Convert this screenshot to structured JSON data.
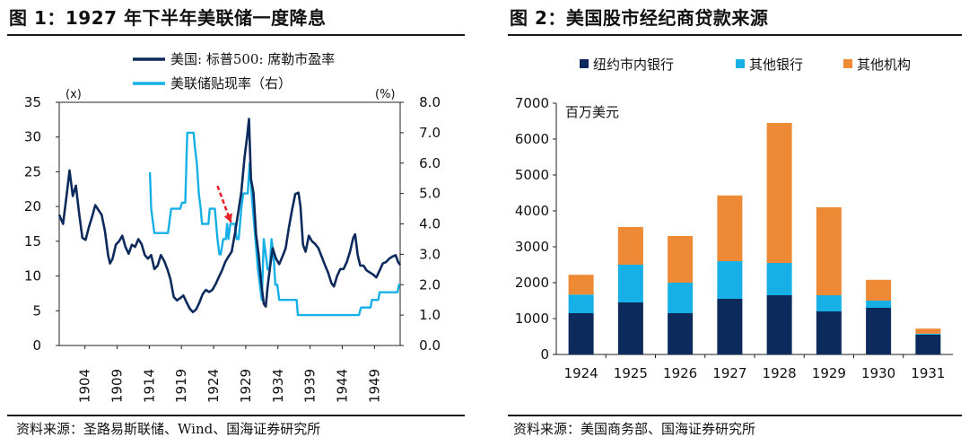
{
  "figure1": {
    "title": "图 1：1927 年下半年美联储一度降息",
    "source": "资料来源：圣路易斯联储、Wind、国海证券研究所"
  },
  "figure2": {
    "title": "图 2：美国股市经纪商贷款来源",
    "source": "资料来源：美国商务部、国海证券研究所"
  },
  "colors": {
    "dark_navy": "#0d2a5c",
    "light_blue": "#16b0e6",
    "orange": "#ee8a35",
    "red_arrow": "#e8202a"
  },
  "chart_data": [
    {
      "type": "line",
      "title": "",
      "xlabel": "",
      "ylabel_left_unit": "(x)",
      "ylabel_right_unit": "(%)",
      "x_ticks": [
        "1904",
        "1909",
        "1914",
        "1919",
        "1924",
        "1929",
        "1934",
        "1939",
        "1944",
        "1949"
      ],
      "y_left_ticks": [
        "0",
        "5",
        "10",
        "15",
        "20",
        "25",
        "30",
        "35"
      ],
      "y_right_ticks": [
        "0.0",
        "1.0",
        "2.0",
        "3.0",
        "4.0",
        "5.0",
        "6.0",
        "7.0",
        "8.0"
      ],
      "y_left_range": [
        0,
        35
      ],
      "y_right_range": [
        0,
        8
      ],
      "x_range": [
        1900,
        1953
      ],
      "legend_placement": "top",
      "annotation": "red dashed arrow pointing at the 1927 discount rate cut",
      "series": [
        {
          "name": "美国: 标普500: 席勒市盈率",
          "axis": "left",
          "color": "#0d2a5c",
          "points": [
            [
              1900,
              18.8
            ],
            [
              1900.6,
              17.5
            ],
            [
              1901.2,
              22
            ],
            [
              1901.6,
              25.2
            ],
            [
              1902.1,
              21.5
            ],
            [
              1902.6,
              23
            ],
            [
              1903.1,
              19
            ],
            [
              1903.6,
              15.5
            ],
            [
              1904.1,
              15.2
            ],
            [
              1904.6,
              17
            ],
            [
              1905.1,
              18.5
            ],
            [
              1905.6,
              20.2
            ],
            [
              1906.1,
              19.5
            ],
            [
              1906.6,
              18.8
            ],
            [
              1907.1,
              16.5
            ],
            [
              1907.6,
              13
            ],
            [
              1907.9,
              11.8
            ],
            [
              1908.3,
              12.5
            ],
            [
              1908.8,
              14.5
            ],
            [
              1909.3,
              15
            ],
            [
              1909.8,
              15.8
            ],
            [
              1910.3,
              14.2
            ],
            [
              1910.8,
              13.2
            ],
            [
              1911.3,
              14.5
            ],
            [
              1911.8,
              14.2
            ],
            [
              1912.3,
              15.3
            ],
            [
              1912.8,
              14.6
            ],
            [
              1913.3,
              13
            ],
            [
              1913.8,
              12.5
            ],
            [
              1914.3,
              13
            ],
            [
              1914.8,
              11
            ],
            [
              1915.3,
              11.5
            ],
            [
              1915.8,
              13
            ],
            [
              1916.3,
              12.2
            ],
            [
              1916.8,
              11
            ],
            [
              1917.3,
              9.5
            ],
            [
              1917.8,
              7
            ],
            [
              1918.3,
              6.5
            ],
            [
              1918.8,
              6.8
            ],
            [
              1919.3,
              7.2
            ],
            [
              1919.8,
              6.2
            ],
            [
              1920.3,
              5.3
            ],
            [
              1920.8,
              4.8
            ],
            [
              1921.3,
              5.2
            ],
            [
              1921.8,
              6.2
            ],
            [
              1922.3,
              7.4
            ],
            [
              1922.8,
              8
            ],
            [
              1923.3,
              7.7
            ],
            [
              1923.8,
              8
            ],
            [
              1924.3,
              8.8
            ],
            [
              1924.8,
              9.8
            ],
            [
              1925.3,
              10.8
            ],
            [
              1925.8,
              12
            ],
            [
              1926.3,
              12.8
            ],
            [
              1926.8,
              13.5
            ],
            [
              1927.3,
              16
            ],
            [
              1927.8,
              19
            ],
            [
              1928.3,
              22
            ],
            [
              1928.8,
              27
            ],
            [
              1929.2,
              30
            ],
            [
              1929.5,
              32.6
            ],
            [
              1929.8,
              24
            ],
            [
              1930.2,
              22
            ],
            [
              1930.6,
              16
            ],
            [
              1931.0,
              13
            ],
            [
              1931.4,
              9
            ],
            [
              1931.8,
              6
            ],
            [
              1932.1,
              5.6
            ],
            [
              1932.4,
              8.5
            ],
            [
              1932.8,
              11.5
            ],
            [
              1933.2,
              14
            ],
            [
              1933.7,
              12.5
            ],
            [
              1934.2,
              11.7
            ],
            [
              1934.7,
              12.8
            ],
            [
              1935.2,
              14
            ],
            [
              1935.7,
              17
            ],
            [
              1936.2,
              19.5
            ],
            [
              1936.7,
              21.8
            ],
            [
              1937.2,
              22
            ],
            [
              1937.5,
              20
            ],
            [
              1937.9,
              14.5
            ],
            [
              1938.3,
              13.5
            ],
            [
              1938.8,
              15.8
            ],
            [
              1939.3,
              15
            ],
            [
              1939.8,
              14.6
            ],
            [
              1940.3,
              14
            ],
            [
              1940.8,
              12.8
            ],
            [
              1941.3,
              11.6
            ],
            [
              1941.8,
              10.5
            ],
            [
              1942.3,
              9
            ],
            [
              1942.7,
              8.5
            ],
            [
              1943.2,
              10
            ],
            [
              1943.7,
              11
            ],
            [
              1944.2,
              11
            ],
            [
              1944.7,
              12
            ],
            [
              1945.2,
              13.5
            ],
            [
              1945.7,
              15.5
            ],
            [
              1946.0,
              16
            ],
            [
              1946.4,
              13
            ],
            [
              1946.8,
              11.5
            ],
            [
              1947.3,
              11.5
            ],
            [
              1947.8,
              10.8
            ],
            [
              1948.3,
              10.5
            ],
            [
              1948.8,
              10.2
            ],
            [
              1949.3,
              9.8
            ],
            [
              1949.8,
              10.8
            ],
            [
              1950.3,
              11.8
            ],
            [
              1950.8,
              12
            ],
            [
              1951.3,
              12.5
            ],
            [
              1951.8,
              12.8
            ],
            [
              1952.3,
              13
            ],
            [
              1952.7,
              12
            ],
            [
              1953,
              11.6
            ]
          ]
        },
        {
          "name": "美联储贴现率（右）",
          "axis": "right",
          "color": "#16b0e6",
          "points": [
            [
              1914.1,
              5.7
            ],
            [
              1914.3,
              4.5
            ],
            [
              1914.6,
              4.0
            ],
            [
              1914.8,
              3.7
            ],
            [
              1916.9,
              3.7
            ],
            [
              1917.1,
              4.0
            ],
            [
              1917.4,
              4.5
            ],
            [
              1918.8,
              4.5
            ],
            [
              1919.1,
              4.7
            ],
            [
              1919.6,
              4.7
            ],
            [
              1919.9,
              7.0
            ],
            [
              1920.9,
              7.0
            ],
            [
              1921.1,
              6.5
            ],
            [
              1921.4,
              6.0
            ],
            [
              1921.7,
              5.0
            ],
            [
              1922.0,
              4.5
            ],
            [
              1922.2,
              4.0
            ],
            [
              1923.2,
              4.0
            ],
            [
              1923.4,
              4.5
            ],
            [
              1924.2,
              4.5
            ],
            [
              1924.4,
              4.0
            ],
            [
              1924.6,
              3.5
            ],
            [
              1924.9,
              3.0
            ],
            [
              1925.1,
              3.0
            ],
            [
              1925.5,
              3.5
            ],
            [
              1925.9,
              3.5
            ],
            [
              1926.1,
              4.0
            ],
            [
              1926.3,
              3.5
            ],
            [
              1926.6,
              4.0
            ],
            [
              1927.3,
              4.0
            ],
            [
              1927.6,
              3.5
            ],
            [
              1927.9,
              3.5
            ],
            [
              1928.1,
              4.0
            ],
            [
              1928.3,
              4.5
            ],
            [
              1928.6,
              5.0
            ],
            [
              1929.3,
              5.0
            ],
            [
              1929.6,
              6.0
            ],
            [
              1929.9,
              5.0
            ],
            [
              1930.1,
              4.5
            ],
            [
              1930.3,
              4.0
            ],
            [
              1930.5,
              3.5
            ],
            [
              1930.7,
              3.0
            ],
            [
              1930.9,
              2.5
            ],
            [
              1931.2,
              2.0
            ],
            [
              1931.5,
              1.5
            ],
            [
              1931.8,
              3.5
            ],
            [
              1932.1,
              3.0
            ],
            [
              1932.4,
              2.5
            ],
            [
              1932.7,
              2.5
            ],
            [
              1933.0,
              3.5
            ],
            [
              1933.3,
              3.0
            ],
            [
              1933.6,
              2.0
            ],
            [
              1933.9,
              2.0
            ],
            [
              1934.2,
              1.5
            ],
            [
              1936.9,
              1.5
            ],
            [
              1937.1,
              1.0
            ],
            [
              1946.6,
              1.0
            ],
            [
              1946.9,
              1.25
            ],
            [
              1948.4,
              1.25
            ],
            [
              1948.6,
              1.5
            ],
            [
              1949.6,
              1.5
            ],
            [
              1949.8,
              1.75
            ],
            [
              1952.6,
              1.75
            ],
            [
              1952.8,
              2.0
            ],
            [
              1953,
              2.0
            ]
          ]
        }
      ]
    },
    {
      "type": "bar",
      "stacked": true,
      "title": "",
      "xlabel": "",
      "ylabel": "百万美元",
      "ylim": [
        0,
        7000
      ],
      "y_ticks": [
        "0",
        "1000",
        "2000",
        "3000",
        "4000",
        "5000",
        "6000",
        "7000"
      ],
      "legend_placement": "top",
      "categories": [
        "1924",
        "1925",
        "1926",
        "1927",
        "1928",
        "1929",
        "1930",
        "1931"
      ],
      "series": [
        {
          "name": "纽约市内银行",
          "color": "#0d2a5c",
          "values": [
            1150,
            1450,
            1150,
            1550,
            1650,
            1200,
            1300,
            550
          ]
        },
        {
          "name": "其他银行",
          "color": "#16b0e6",
          "values": [
            520,
            1050,
            850,
            1050,
            900,
            450,
            200,
            30
          ]
        },
        {
          "name": "其他机构",
          "color": "#ee8a35",
          "values": [
            550,
            1050,
            1300,
            1830,
            3900,
            2450,
            580,
            140
          ]
        }
      ]
    }
  ]
}
